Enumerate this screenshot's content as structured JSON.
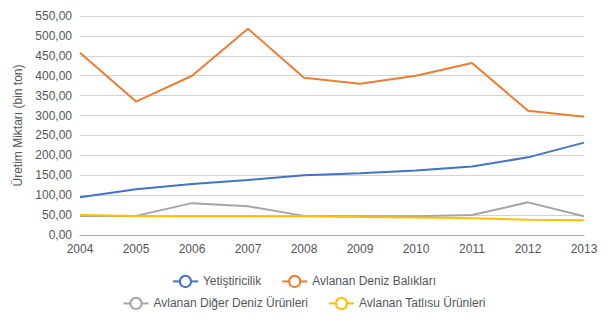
{
  "chart_data": {
    "type": "line",
    "categories": [
      "2004",
      "2005",
      "2006",
      "2007",
      "2008",
      "2009",
      "2010",
      "2011",
      "2012",
      "2013"
    ],
    "series": [
      {
        "name": "Yetiştiricilik",
        "color": "#4472C4",
        "values": [
          95,
          115,
          128,
          138,
          150,
          155,
          162,
          172,
          195,
          232
        ]
      },
      {
        "name": "Avlanan Deniz Balıkları",
        "color": "#ED7D31",
        "values": [
          458,
          335,
          400,
          518,
          395,
          380,
          400,
          432,
          312,
          297
        ]
      },
      {
        "name": "Avlanan Diğer Deniz Ürünleri",
        "color": "#A5A5A5",
        "values": [
          48,
          48,
          80,
          72,
          48,
          47,
          47,
          50,
          82,
          47
        ]
      },
      {
        "name": "Avlanan Tatlısu Ürünleri",
        "color": "#FFC000",
        "values": [
          50,
          48,
          47,
          47,
          47,
          45,
          44,
          42,
          38,
          37
        ]
      }
    ],
    "y_label": "Üretim Miktarı (bin ton)",
    "ylim": [
      0,
      550
    ],
    "yticks": [
      {
        "value": 0,
        "label": "0,00"
      },
      {
        "value": 50,
        "label": "50,00"
      },
      {
        "value": 100,
        "label": "100,00"
      },
      {
        "value": 150,
        "label": "150,00"
      },
      {
        "value": 200,
        "label": "200,00"
      },
      {
        "value": 250,
        "label": "250,00"
      },
      {
        "value": 300,
        "label": "300,00"
      },
      {
        "value": 350,
        "label": "350,00"
      },
      {
        "value": 400,
        "label": "400,00"
      },
      {
        "value": 450,
        "label": "450,00"
      },
      {
        "value": 500,
        "label": "500,00"
      },
      {
        "value": 550,
        "label": "550,00"
      }
    ],
    "grid": true,
    "legend": "bottom"
  }
}
